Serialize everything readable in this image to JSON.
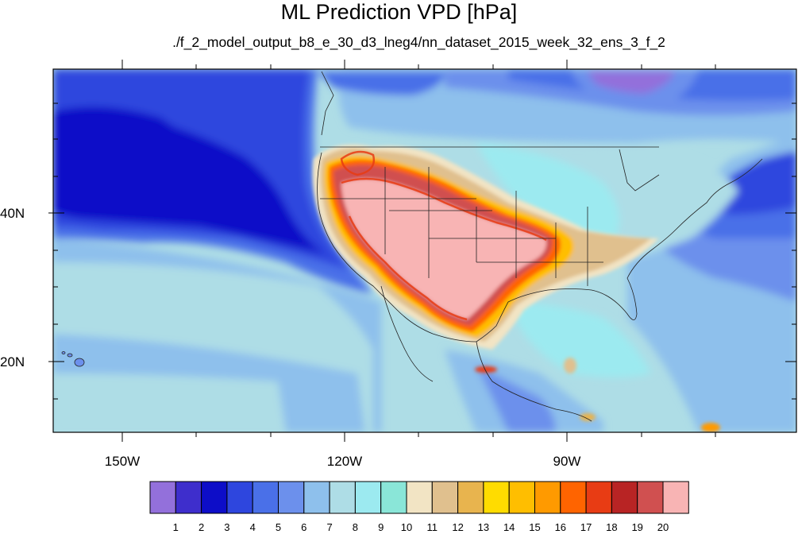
{
  "title": "ML Prediction VPD [hPa]",
  "subtitle": "./f_2_model_output_b8_e_30_d3_lneg4/nn_dataset_2015_week_32_ens_3_f_2",
  "lon_labels": [
    "150W",
    "120W",
    "90W"
  ],
  "lat_labels": [
    "40N",
    "20N"
  ],
  "colorbar": {
    "colors": [
      "#9370db",
      "#3e2ecc",
      "#0d0dc8",
      "#2e46de",
      "#4a70e8",
      "#6c90ec",
      "#8ec0ec",
      "#aedde6",
      "#9ceaf0",
      "#8ae6d8",
      "#f2e4c4",
      "#e0c08e",
      "#e8b44e",
      "#ffdc00",
      "#ffbe00",
      "#ff9a00",
      "#ff6400",
      "#e83c14",
      "#b82424",
      "#d05050",
      "#f8b4b4"
    ],
    "labels": [
      "1",
      "2",
      "3",
      "4",
      "5",
      "6",
      "7",
      "8",
      "9",
      "10",
      "11",
      "12",
      "13",
      "14",
      "15",
      "16",
      "17",
      "18",
      "19",
      "20"
    ]
  }
}
